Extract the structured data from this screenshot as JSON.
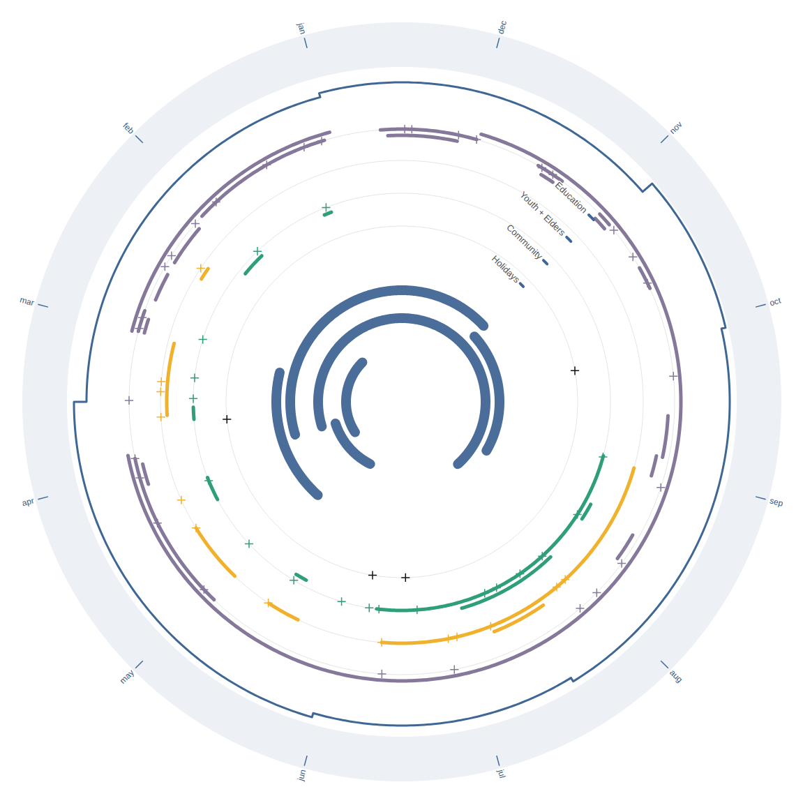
{
  "chart_data": {
    "type": "radial_calendar",
    "categories": [
      "jan",
      "feb",
      "mar",
      "apr",
      "may",
      "jun",
      "jul",
      "aug",
      "sep",
      "oct",
      "nov",
      "dec"
    ],
    "rings": [
      {
        "name": "Education",
        "color": "#86789a",
        "arcs": [
          {
            "track": 0,
            "start": 0.0,
            "end": 2.01
          },
          {
            "track": 0,
            "start": 2.87,
            "end": 10.95
          },
          {
            "track": 1,
            "start": 10.97,
            "end": 11.65
          },
          {
            "track": 2,
            "start": 11.1,
            "end": 11.6
          },
          {
            "track": 1,
            "start": 0.05,
            "end": 1.07
          },
          {
            "track": 2,
            "start": 1.15,
            "end": 1.45
          },
          {
            "track": 2,
            "start": 1.55,
            "end": 1.75
          },
          {
            "track": 1,
            "start": 1.85,
            "end": 2.0
          },
          {
            "track": 2,
            "start": 1.9,
            "end": 2.0
          },
          {
            "track": 1,
            "start": 2.9,
            "end": 4.05
          },
          {
            "track": 2,
            "start": 2.95,
            "end": 3.1
          },
          {
            "track": 1,
            "start": 10.3,
            "end": 10.5
          },
          {
            "track": 2,
            "start": 10.35,
            "end": 10.45
          },
          {
            "track": 1,
            "start": 9.85,
            "end": 9.95
          },
          {
            "track": 2,
            "start": 9.85,
            "end": 9.95
          },
          {
            "track": 1,
            "start": 9.32,
            "end": 9.48
          },
          {
            "track": 2,
            "start": 8.1,
            "end": 8.4
          },
          {
            "track": 3,
            "start": 7.95,
            "end": 8.1
          },
          {
            "track": 2,
            "start": 7.3,
            "end": 7.5
          }
        ],
        "markers": [
          11.48,
          11.43,
          11.1,
          10.97,
          0.2,
          0.07,
          0.49,
          10.47,
          10.38,
          9.8,
          0.93,
          1.14,
          1.42,
          1.51,
          9.57,
          9.36,
          1.9,
          1.98,
          2.49,
          8.68,
          2.9,
          3.04,
          7.89,
          3.38,
          3.95,
          7.29,
          7.02,
          6.86,
          5.36,
          5.87
        ]
      },
      {
        "name": "Youth + Elders",
        "color": "#f0b12c",
        "arcs": [
          {
            "track": 2,
            "start": 1.35,
            "end": 1.45
          },
          {
            "track": 2,
            "start": 2.02,
            "end": 2.61
          },
          {
            "track": 1,
            "start": 3.55,
            "end": 4.04
          },
          {
            "track": 1,
            "start": 4.39,
            "end": 4.65
          },
          {
            "track": 1,
            "start": 5.34,
            "end": 7.97
          },
          {
            "track": 0,
            "start": 6.23,
            "end": 6.66
          }
        ],
        "markers": [
          1.38,
          2.34,
          2.42,
          2.62,
          3.3,
          3.55,
          4.38,
          5.34,
          5.87,
          5.94,
          6.22,
          6.83,
          6.92
        ]
      },
      {
        "name": "Community",
        "color": "#2f9f79",
        "arcs": [
          {
            "track": 2,
            "start": 0.18,
            "end": 0.25
          },
          {
            "track": 2,
            "start": 0.96,
            "end": 1.19
          },
          {
            "track": 1,
            "start": 2.55,
            "end": 2.66
          },
          {
            "track": 1,
            "start": 3.21,
            "end": 3.43
          },
          {
            "track": 2,
            "start": 4.45,
            "end": 4.56
          },
          {
            "track": 1,
            "start": 5.27,
            "end": 8.0
          },
          {
            "track": 0,
            "start": 6.04,
            "end": 6.96
          },
          {
            "track": 0,
            "start": 7.4,
            "end": 7.55
          }
        ],
        "markers": [
          0.21,
          0.96,
          1.92,
          2.28,
          2.47,
          3.24,
          3.93,
          4.46,
          4.94,
          5.2,
          5.29,
          5.64,
          6.28,
          6.4,
          6.65,
          6.91,
          7.41,
          7.99
        ]
      },
      {
        "name": "Holidays",
        "color": "#111111",
        "arcs": [],
        "markers": [
          2.69,
          5.18,
          5.54,
          8.84
        ]
      }
    ],
    "center_arcs": {
      "color": "#4a6e99",
      "arcs": [
        {
          "track": 1,
          "start": 1.0,
          "end": 3.6
        },
        {
          "track": 2,
          "start": 3.1,
          "end": 4.6
        },
        {
          "track": 3,
          "start": 6.9,
          "end": 3.07
        },
        {
          "track": 4,
          "start": 7.5,
          "end": 9.9
        },
        {
          "track": 5,
          "start": 9.93,
          "end": 3.07
        },
        {
          "track": 6,
          "start": 2.05,
          "end": 4.1
        }
      ]
    },
    "border": {
      "color": "#3f6795",
      "segments": [
        {
          "start": 0.0,
          "end": 2.5,
          "level": 2
        },
        {
          "start": 2.5,
          "end": 4.97,
          "level": 5
        },
        {
          "start": 4.97,
          "end": 6.55,
          "level": 4
        },
        {
          "start": 6.55,
          "end": 8.93,
          "level": 5
        },
        {
          "start": 8.93,
          "end": 9.87,
          "level": 6
        },
        {
          "start": 9.87,
          "end": 12.0,
          "level": 3
        }
      ]
    }
  }
}
